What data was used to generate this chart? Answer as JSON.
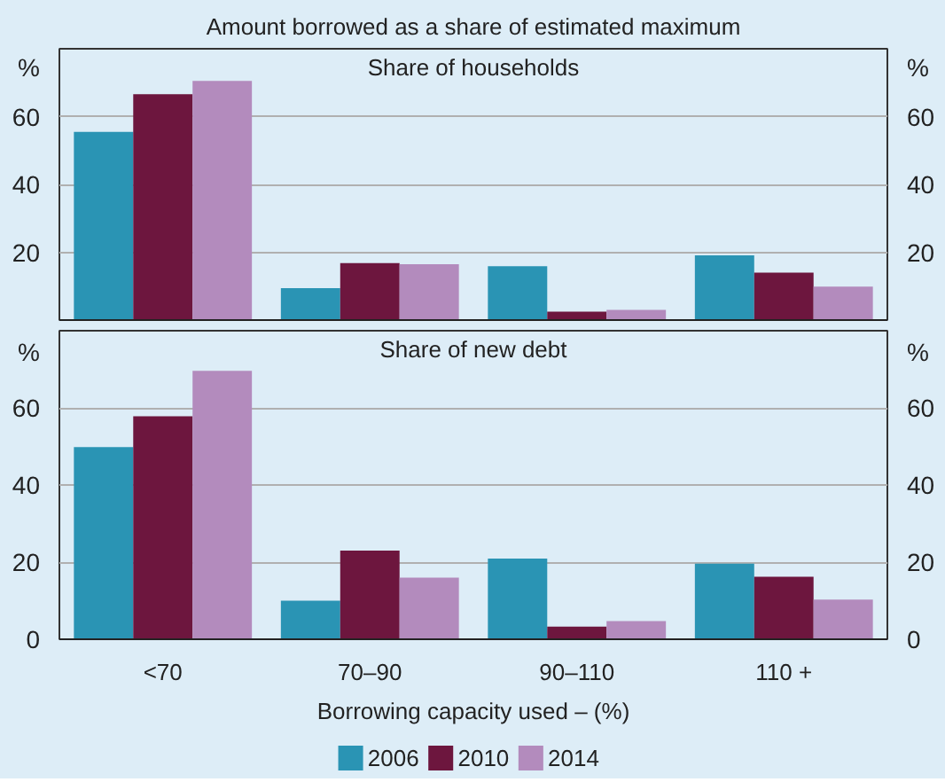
{
  "chart_data": [
    {
      "type": "bar",
      "title": "Amount borrowed as a share of estimated maximum",
      "subtitle": "Share of households",
      "categories": [
        null,
        null,
        null,
        null
      ],
      "series": [
        {
          "color": "#2a94b4",
          "values": [
            55.5,
            9.4,
            15.9,
            19.1
          ]
        },
        {
          "color": "#6d163e",
          "values": [
            66.6,
            16.8,
            2.5,
            14.0
          ]
        },
        {
          "color": "#b38bbd",
          "values": [
            70.5,
            16.5,
            3.0,
            9.9
          ]
        }
      ],
      "ylabel": "%",
      "y2label": "%",
      "ylim": [
        0,
        80
      ],
      "yticks": [
        20,
        40,
        60
      ],
      "y2lim": [
        0,
        80
      ],
      "y2ticks": [
        20,
        40,
        60
      ],
      "grid": "y"
    },
    {
      "type": "bar",
      "title": "Share of new debt",
      "categories": [
        "<70",
        "70–90",
        "90–110",
        "110 +"
      ],
      "series": [
        {
          "name": "2006",
          "color": "#2a94b4",
          "values": [
            49.8,
            10.0,
            20.9,
            19.6
          ]
        },
        {
          "name": "2010",
          "color": "#6d163e",
          "values": [
            57.8,
            23.0,
            3.3,
            16.2
          ]
        },
        {
          "name": "2014",
          "color": "#b38bbd",
          "values": [
            69.6,
            16.0,
            4.7,
            10.3
          ]
        }
      ],
      "xlabel": "Borrowing capacity used – (%)",
      "ylabel": "%",
      "y2label": "%",
      "ylim": [
        0,
        80
      ],
      "yticks": [
        0,
        20,
        40,
        60
      ],
      "y2lim": [
        0,
        80
      ],
      "y2ticks": [
        0,
        20,
        40,
        60
      ],
      "grid": "y",
      "legend": "bottom"
    }
  ]
}
